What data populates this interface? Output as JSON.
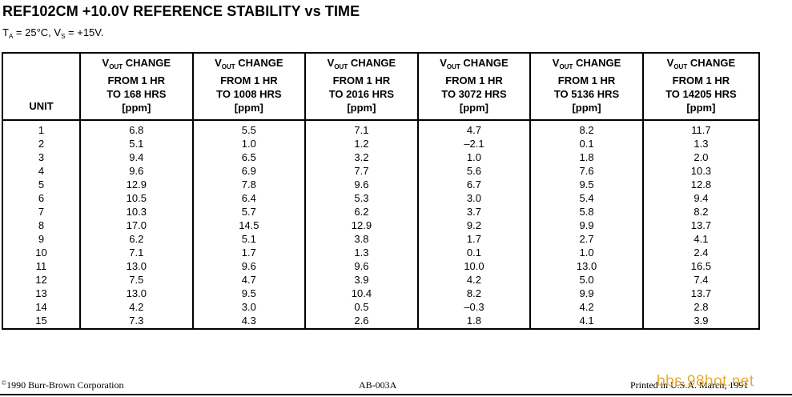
{
  "title": "REF102CM +10.0V REFERENCE STABILITY vs TIME",
  "conditions": {
    "ta_prefix": "T",
    "ta_sub": "A",
    "ta_value": " = 25°C, V",
    "vs_sub": "S",
    "vs_value": " = +15V."
  },
  "table": {
    "unit_header": "UNIT",
    "vout_prefix": "V",
    "vout_sub": "OUT",
    "columns": [
      {
        "line1": " CHANGE",
        "line2": "FROM 1 HR",
        "line3": "TO 168 HRS",
        "line4": "[ppm]"
      },
      {
        "line1": " CHANGE",
        "line2": "FROM 1 HR",
        "line3": "TO 1008 HRS",
        "line4": "[ppm]"
      },
      {
        "line1": " CHANGE",
        "line2": "FROM 1 HR",
        "line3": "TO 2016 HRS",
        "line4": "[ppm]"
      },
      {
        "line1": " CHANGE",
        "line2": "FROM 1 HR",
        "line3": "TO 3072 HRS",
        "line4": "[ppm]"
      },
      {
        "line1": " CHANGE",
        "line2": "FROM 1 HR",
        "line3": "TO 5136 HRS",
        "line4": "[ppm]"
      },
      {
        "line1": " CHANGE",
        "line2": "FROM 1 HR",
        "line3": "TO 14205 HRS",
        "line4": "[ppm]"
      }
    ],
    "rows": [
      [
        "1",
        "6.8",
        "5.5",
        "7.1",
        "4.7",
        "8.2",
        "11.7"
      ],
      [
        "2",
        "5.1",
        "1.0",
        "1.2",
        "–2.1",
        "0.1",
        "1.3"
      ],
      [
        "3",
        "9.4",
        "6.5",
        "3.2",
        "1.0",
        "1.8",
        "2.0"
      ],
      [
        "4",
        "9.6",
        "6.9",
        "7.7",
        "5.6",
        "7.6",
        "10.3"
      ],
      [
        "5",
        "12.9",
        "7.8",
        "9.6",
        "6.7",
        "9.5",
        "12.8"
      ],
      [
        "6",
        "10.5",
        "6.4",
        "5.3",
        "3.0",
        "5.4",
        "9.4"
      ],
      [
        "7",
        "10.3",
        "5.7",
        "6.2",
        "3.7",
        "5.8",
        "8.2"
      ],
      [
        "8",
        "17.0",
        "14.5",
        "12.9",
        "9.2",
        "9.9",
        "13.7"
      ],
      [
        "9",
        "6.2",
        "5.1",
        "3.8",
        "1.7",
        "2.7",
        "4.1"
      ],
      [
        "10",
        "7.1",
        "1.7",
        "1.3",
        "0.1",
        "1.0",
        "2.4"
      ],
      [
        "11",
        "13.0",
        "9.6",
        "9.6",
        "10.0",
        "13.0",
        "16.5"
      ],
      [
        "12",
        "7.5",
        "4.7",
        "3.9",
        "4.2",
        "5.0",
        "7.4"
      ],
      [
        "13",
        "13.0",
        "9.5",
        "10.4",
        "8.2",
        "9.9",
        "13.7"
      ],
      [
        "14",
        "4.2",
        "3.0",
        "0.5",
        "–0.3",
        "4.2",
        "2.8"
      ],
      [
        "15",
        "7.3",
        "4.3",
        "2.6",
        "1.8",
        "4.1",
        "3.9"
      ]
    ]
  },
  "footer": {
    "copyright_symbol": "©",
    "copyright": "1990 Burr-Brown Corporation",
    "doc_number": "AB-003A",
    "printed": "Printed in U.S.A. March, 1991"
  },
  "watermark": "bbs.98hot.net"
}
